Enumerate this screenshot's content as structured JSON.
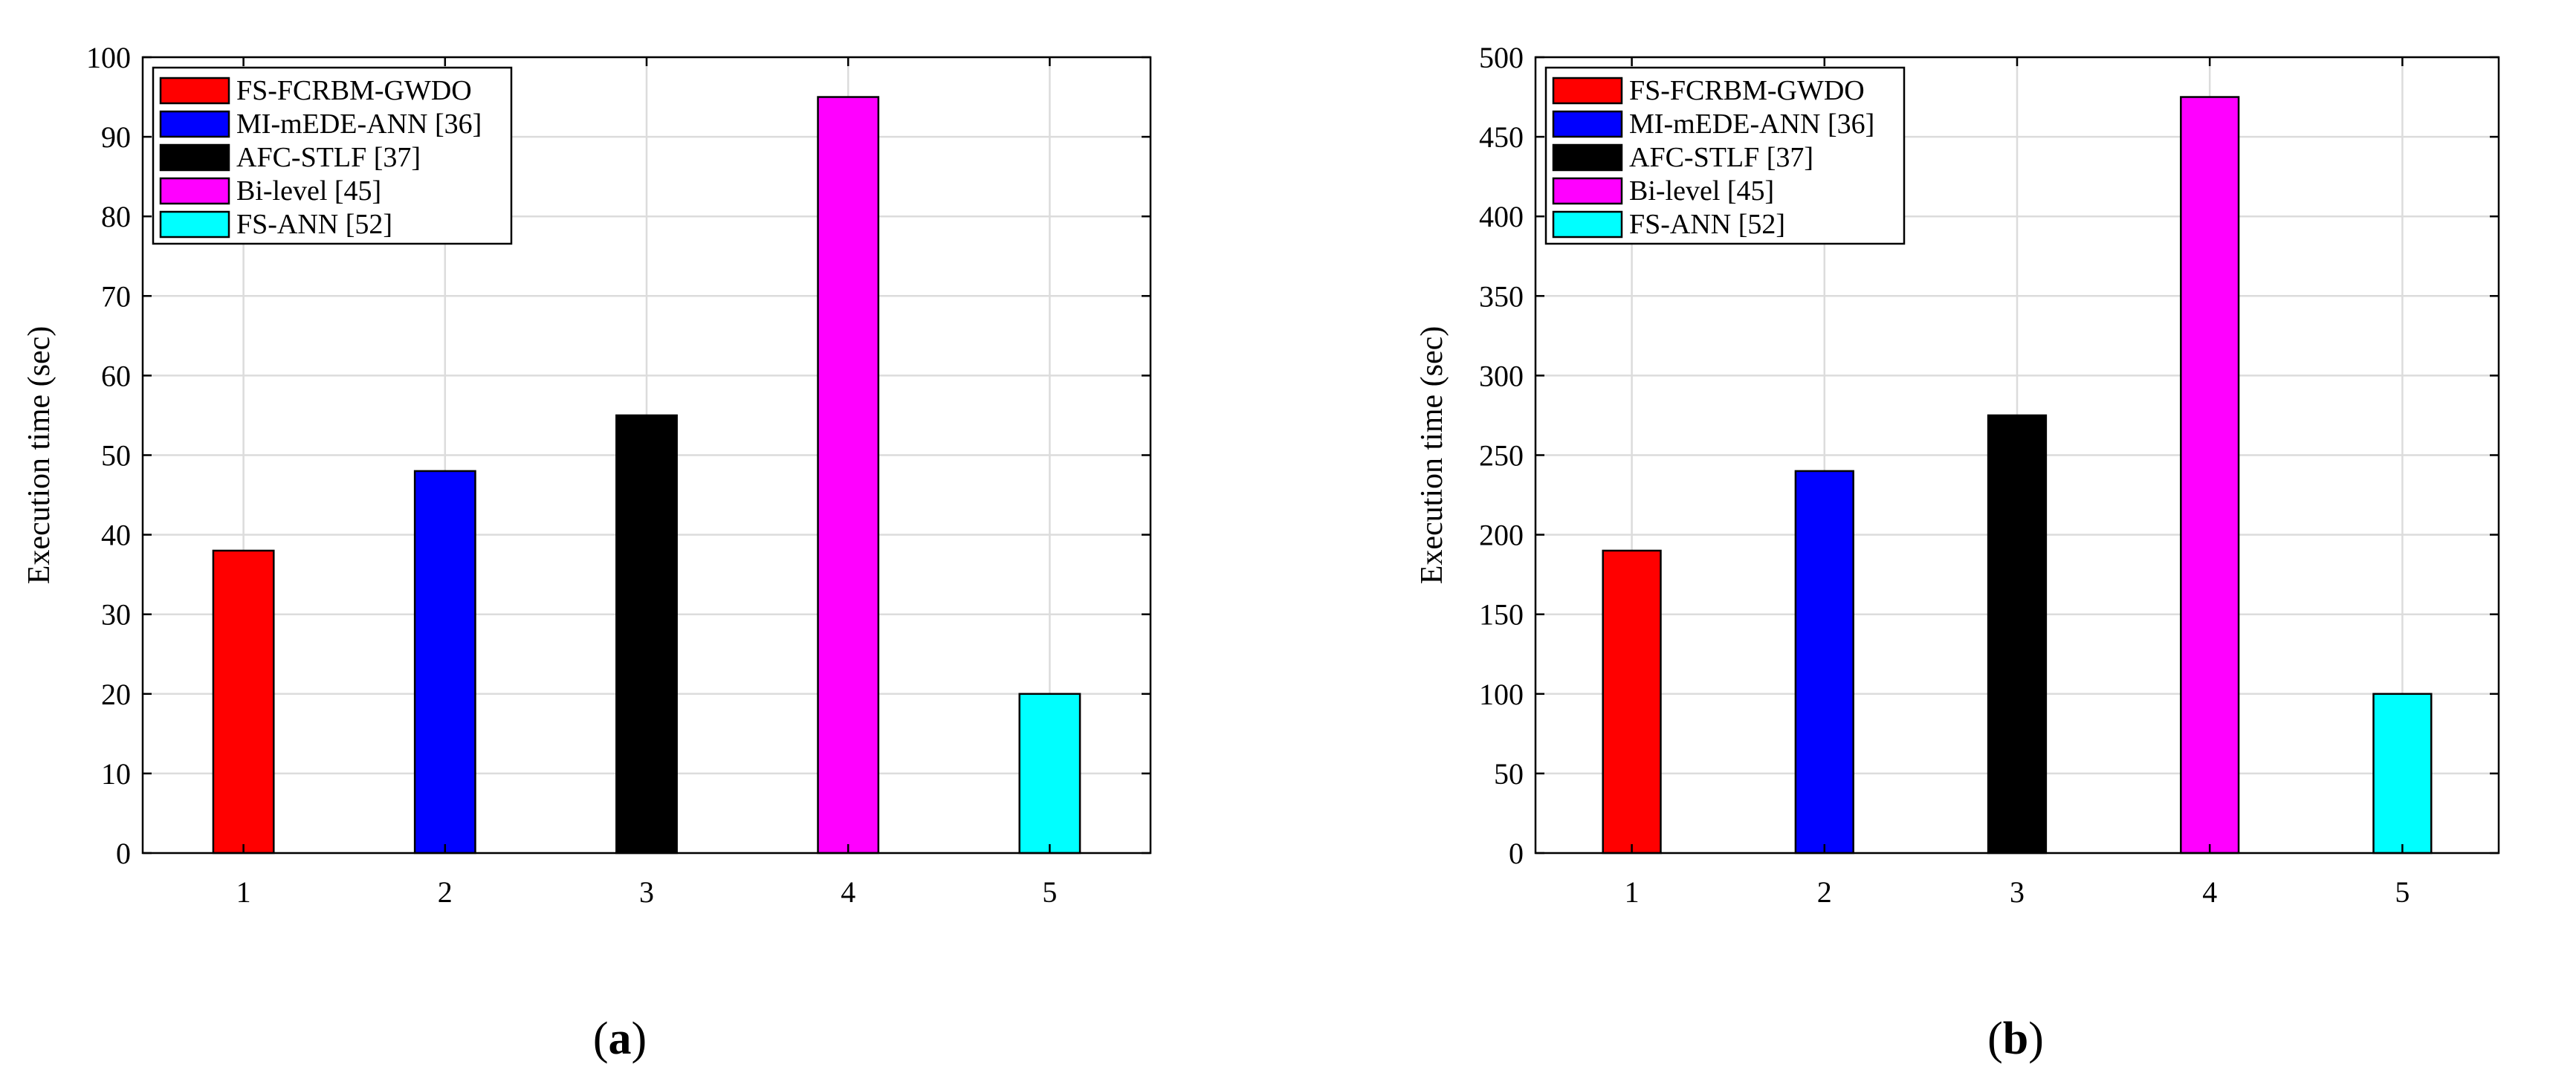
{
  "chart_data": [
    {
      "type": "bar",
      "panel_label": "(a)",
      "ylabel": "Execution time (sec)",
      "xlabel": "",
      "x": [
        1,
        2,
        3,
        4,
        5
      ],
      "xticks": [
        "1",
        "2",
        "3",
        "4",
        "5"
      ],
      "ylim": [
        0,
        100
      ],
      "yticks": [
        "0",
        "10",
        "20",
        "30",
        "40",
        "50",
        "60",
        "70",
        "80",
        "90",
        "100"
      ],
      "grid": true,
      "legend_position": "top-left",
      "series": [
        {
          "name": "FS-FCRBM-GWDO",
          "x": 1,
          "value": 38,
          "color": "#ff0000"
        },
        {
          "name": "MI-mEDE-ANN [36]",
          "x": 2,
          "value": 48,
          "color": "#0000ff"
        },
        {
          "name": "AFC-STLF [37]",
          "x": 3,
          "value": 55,
          "color": "#000000"
        },
        {
          "name": "Bi-level [45]",
          "x": 4,
          "value": 95,
          "color": "#ff00ff"
        },
        {
          "name": "FS-ANN [52]",
          "x": 5,
          "value": 20,
          "color": "#00ffff"
        }
      ]
    },
    {
      "type": "bar",
      "panel_label": "(b)",
      "ylabel": "Execution time (sec)",
      "xlabel": "",
      "x": [
        1,
        2,
        3,
        4,
        5
      ],
      "xticks": [
        "1",
        "2",
        "3",
        "4",
        "5"
      ],
      "ylim": [
        0,
        500
      ],
      "yticks": [
        "0",
        "50",
        "100",
        "150",
        "200",
        "250",
        "300",
        "350",
        "400",
        "450",
        "500"
      ],
      "grid": true,
      "legend_position": "top-left",
      "series": [
        {
          "name": "FS-FCRBM-GWDO",
          "x": 1,
          "value": 190,
          "color": "#ff0000"
        },
        {
          "name": "MI-mEDE-ANN [36]",
          "x": 2,
          "value": 240,
          "color": "#0000ff"
        },
        {
          "name": "AFC-STLF [37]",
          "x": 3,
          "value": 275,
          "color": "#000000"
        },
        {
          "name": "Bi-level [45]",
          "x": 4,
          "value": 475,
          "color": "#ff00ff"
        },
        {
          "name": "FS-ANN [52]",
          "x": 5,
          "value": 100,
          "color": "#00ffff"
        }
      ]
    }
  ]
}
